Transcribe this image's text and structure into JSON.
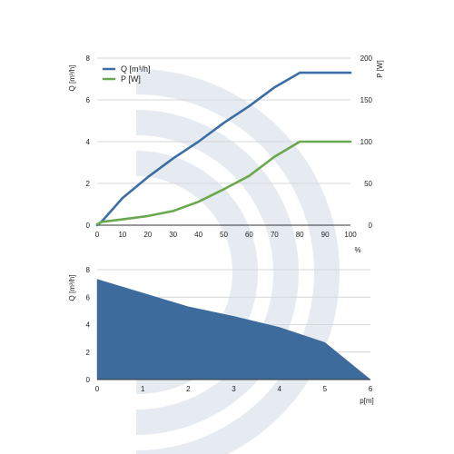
{
  "colors": {
    "flow": "#3b6ea5",
    "power": "#6aa84f",
    "area": "#3d6b9c",
    "grid": "#d4d7db",
    "watermark": "#e6ebf1"
  },
  "chart_data": [
    {
      "type": "line",
      "xlabel": "%",
      "ylabel": "Q [m³/h]",
      "y2label": "P [W]",
      "x_ticks": [
        "0",
        "10",
        "20",
        "30",
        "40",
        "50",
        "60",
        "70",
        "80",
        "90",
        "100"
      ],
      "y_ticks": [
        "0",
        "2",
        "4",
        "6",
        "8"
      ],
      "y2_ticks": [
        "0",
        "50",
        "100",
        "150",
        "200"
      ],
      "xlim": [
        0,
        100
      ],
      "ylim": [
        0,
        8
      ],
      "y2lim": [
        0,
        200
      ],
      "grid": true,
      "legend_position": "top-left",
      "series": [
        {
          "name": "Q [m³/h]",
          "axis": "left",
          "color": "#3b6ea5",
          "x": [
            0,
            2,
            10,
            20,
            30,
            40,
            50,
            60,
            70,
            80,
            90,
            100
          ],
          "y": [
            0.0,
            0.2,
            1.3,
            2.3,
            3.2,
            4.0,
            4.9,
            5.7,
            6.6,
            7.3,
            7.3,
            7.3
          ]
        },
        {
          "name": "P [W]",
          "axis": "right",
          "color": "#6aa84f",
          "x": [
            0,
            2,
            10,
            20,
            30,
            40,
            50,
            60,
            70,
            80,
            90,
            100
          ],
          "y": [
            1,
            4,
            7,
            11,
            17,
            28,
            43,
            59,
            82,
            100,
            100,
            100
          ]
        }
      ]
    },
    {
      "type": "area",
      "xlabel": "p[m]",
      "ylabel": "Q [m³/h]",
      "x_ticks": [
        "0",
        "1",
        "2",
        "3",
        "4",
        "5",
        "6"
      ],
      "y_ticks": [
        "0",
        "2",
        "4",
        "6",
        "8"
      ],
      "xlim": [
        0,
        6
      ],
      "ylim": [
        0,
        8
      ],
      "grid": true,
      "series": [
        {
          "color": "#3d6b9c",
          "x": [
            0,
            1,
            2,
            3,
            4,
            5,
            6
          ],
          "y": [
            7.3,
            6.3,
            5.3,
            4.6,
            3.8,
            2.7,
            0.0
          ]
        }
      ]
    }
  ]
}
